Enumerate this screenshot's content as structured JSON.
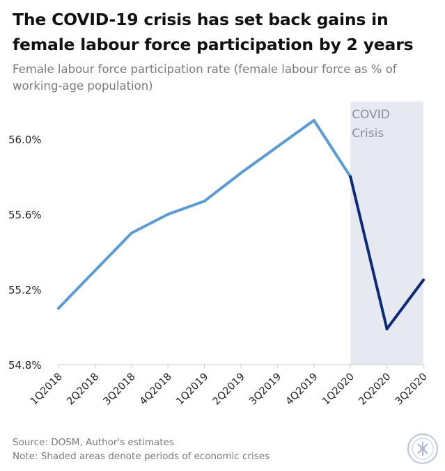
{
  "title_lines": [
    "The COVID-19 crisis has set back gains in",
    "female labour force participation by 2 years"
  ],
  "subtitle_lines": [
    "Female labour force participation rate (female labour force as % of",
    "working-age population)"
  ],
  "footer": {
    "source": "Source: DOSM, Author's estimates",
    "note": "Note: Shaded areas denote periods of economic crises"
  },
  "colors": {
    "pre_covid_line": "#5b9bd5",
    "covid_line": "#0c2a78",
    "shade": "#e6e9f2",
    "shade_text": "#8a8f99",
    "axis": "#c8c8c8",
    "tick_text": "#222222"
  },
  "chart_data": {
    "type": "line",
    "title": "The COVID-19 crisis has set back gains in female labour force participation by 2 years",
    "subtitle": "Female labour force participation rate (female labour force as % of working-age population)",
    "xlabel": "",
    "ylabel": "",
    "categories": [
      "1Q2018",
      "2Q2018",
      "3Q2018",
      "4Q2018",
      "1Q2019",
      "2Q2019",
      "3Q2019",
      "4Q2019",
      "1Q2020",
      "2Q2020",
      "3Q2020"
    ],
    "values": [
      55.1,
      55.3,
      55.5,
      55.6,
      55.67,
      55.82,
      55.96,
      56.1,
      55.8,
      54.99,
      55.25
    ],
    "ylim": [
      54.8,
      56.2
    ],
    "yticks": [
      54.8,
      55.2,
      55.6,
      56.0
    ],
    "ytick_labels": [
      "54.8%",
      "55.2%",
      "55.6%",
      "56.0%"
    ],
    "grid": false,
    "shaded_region": {
      "from": "1Q2020",
      "to": "3Q2020",
      "label_lines": [
        "COVID",
        "Crisis"
      ]
    },
    "segments": [
      {
        "from": "1Q2018",
        "to": "1Q2020",
        "color": "#5b9bd5"
      },
      {
        "from": "1Q2020",
        "to": "3Q2020",
        "color": "#0c2a78"
      }
    ]
  }
}
